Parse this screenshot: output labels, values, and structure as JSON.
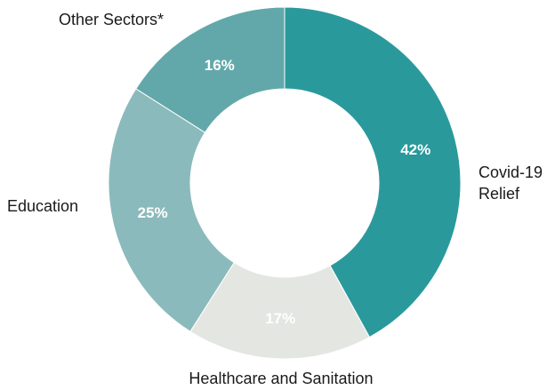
{
  "chart_data": {
    "type": "pie",
    "donut": true,
    "title": "",
    "slices": [
      {
        "label": [
          "Covid-19",
          "Relief"
        ],
        "value": 42,
        "value_label": "42%",
        "color": "#2a999c",
        "pct_color": "#ffffff"
      },
      {
        "label": [
          "Healthcare and Sanitation"
        ],
        "value": 17,
        "value_label": "17%",
        "color": "#e3e6e1",
        "pct_color": "#ffffff"
      },
      {
        "label": [
          "Education"
        ],
        "value": 25,
        "value_label": "25%",
        "color": "#8bbabc",
        "pct_color": "#ffffff"
      },
      {
        "label": [
          "Other Sectors*"
        ],
        "value": 16,
        "value_label": "16%",
        "color": "#62a8aa",
        "pct_color": "#ffffff"
      }
    ],
    "legend": "none"
  }
}
